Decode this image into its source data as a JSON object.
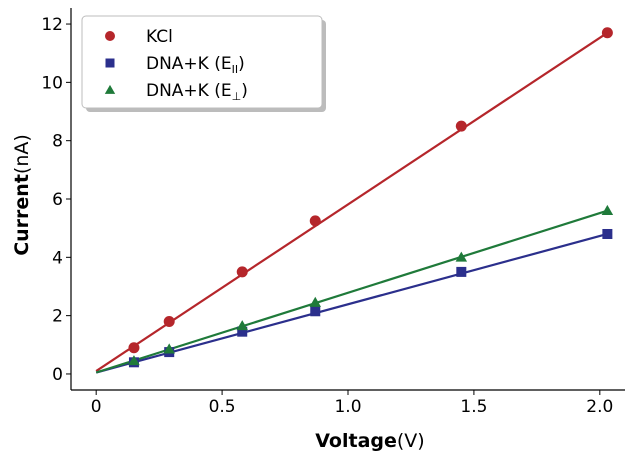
{
  "chart_data": {
    "type": "scatter",
    "xlabel": "Voltage",
    "xlabel_unit": "(V)",
    "ylabel": "Current",
    "ylabel_unit": "(nA)",
    "xlim": [
      -0.1,
      2.1
    ],
    "ylim": [
      -0.55,
      12.55
    ],
    "xticks": [
      0,
      0.5,
      1.0,
      1.5,
      2.0
    ],
    "xtick_labels": [
      "0",
      "0.5",
      "1.0",
      "1.5",
      "2.0"
    ],
    "yticks": [
      0,
      2,
      4,
      6,
      8,
      10,
      12
    ],
    "ytick_labels": [
      "0",
      "2",
      "4",
      "6",
      "8",
      "10",
      "12"
    ],
    "grid": false,
    "legend_position": "top-left",
    "series": [
      {
        "name": "KCl",
        "legend": {
          "main": "KCl",
          "sub": ""
        },
        "marker": "circle",
        "color": "#b5262b",
        "x": [
          0.15,
          0.29,
          0.58,
          0.87,
          1.45,
          2.03
        ],
        "y": [
          0.9,
          1.8,
          3.5,
          5.25,
          8.5,
          11.7
        ],
        "fit": {
          "x": [
            0,
            2.03
          ],
          "y": [
            0.1,
            11.7
          ]
        }
      },
      {
        "name": "DNA+K (E∥)",
        "legend": {
          "main": "DNA+K (E",
          "sub": "II",
          "close": ")"
        },
        "marker": "square",
        "color": "#2b2f8c",
        "x": [
          0.15,
          0.29,
          0.58,
          0.87,
          1.45,
          2.03
        ],
        "y": [
          0.4,
          0.75,
          1.45,
          2.15,
          3.5,
          4.8
        ],
        "fit": {
          "x": [
            0,
            2.03
          ],
          "y": [
            0.05,
            4.8
          ]
        }
      },
      {
        "name": "DNA+K (E⊥)",
        "legend": {
          "main": "DNA+K (E",
          "sub": "⊥",
          "close": ")"
        },
        "marker": "triangle",
        "color": "#1f7a3a",
        "x": [
          0.15,
          0.29,
          0.58,
          0.87,
          1.45,
          2.03
        ],
        "y": [
          0.45,
          0.85,
          1.65,
          2.45,
          4.0,
          5.6
        ],
        "fit": {
          "x": [
            0,
            2.03
          ],
          "y": [
            0.05,
            5.6
          ]
        }
      }
    ]
  }
}
